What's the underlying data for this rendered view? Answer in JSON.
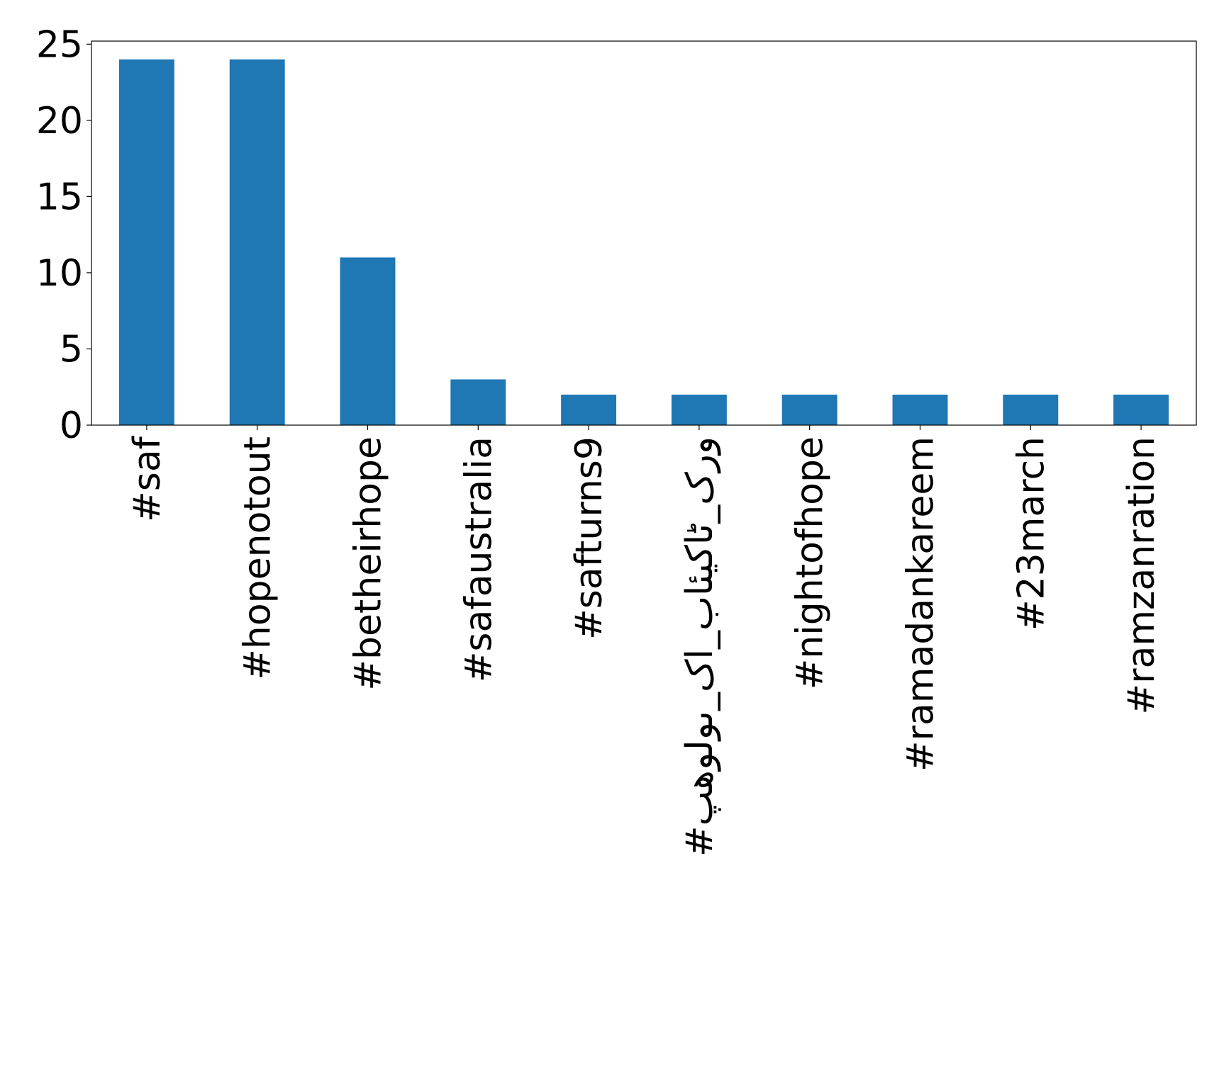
{
  "chart_data": {
    "type": "bar",
    "categories": [
      "#saf",
      "#hopenotout",
      "#betheirhope",
      "#safaustralia",
      "#safturns9",
      "#پھولوں_کا_بائیکاٹ_کرو",
      "#nightofhope",
      "#ramadankareem",
      "#23march",
      "#ramzanration"
    ],
    "values": [
      24,
      24,
      11,
      3,
      2,
      2,
      2,
      2,
      2,
      2
    ],
    "color": "#1f77b4",
    "ylim": [
      0,
      25.2
    ],
    "yticks": [
      0,
      5,
      10,
      15,
      20,
      25
    ],
    "grid": false
  }
}
